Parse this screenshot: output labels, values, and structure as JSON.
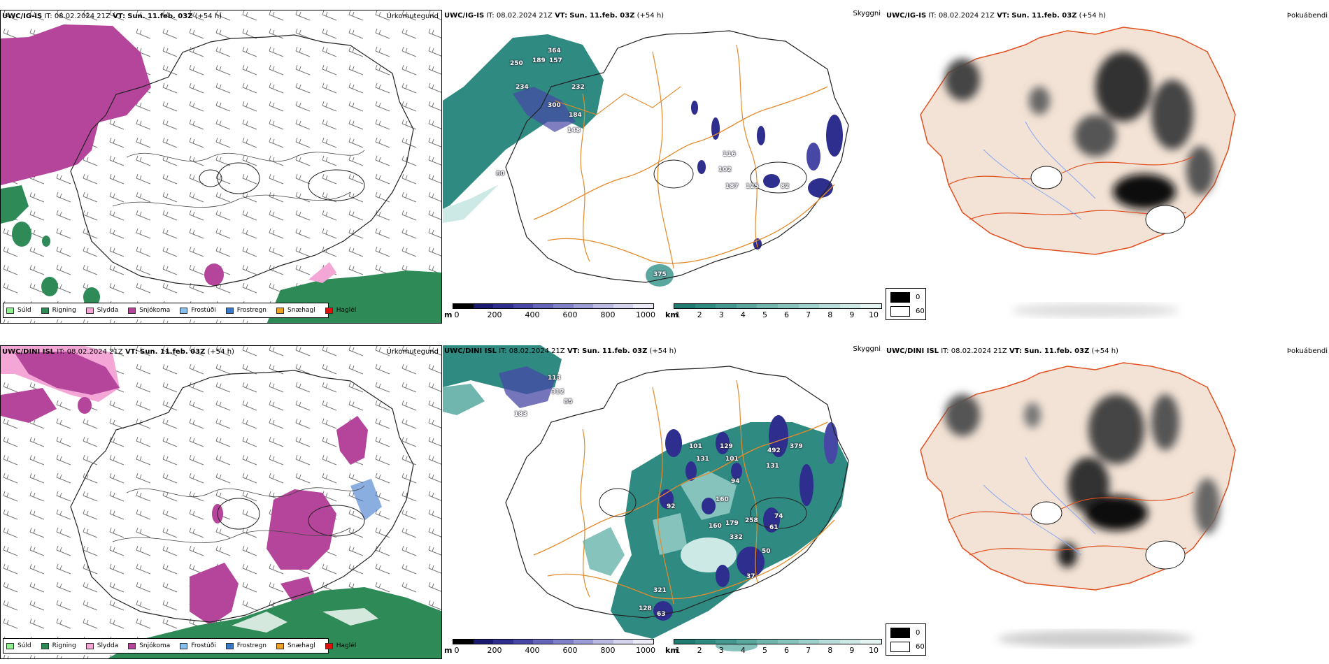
{
  "rows": [
    {
      "precip": {
        "model": "UWC/IG-IS",
        "it_label": "IT:",
        "it_value": "08.02.2024 21Z",
        "vt_label": "VT:",
        "vt_value": "Sun. 11.feb. 03Z",
        "lead": "(+54 h)",
        "field": "Úrkomutegund"
      },
      "vis": {
        "model": "UWC/IG-IS",
        "it_label": "IT:",
        "it_value": "08.02.2024 21Z",
        "vt_label": "VT:",
        "vt_value": "Sun. 11.feb. 03Z",
        "lead": "(+54 h)",
        "field": "Skyggni",
        "labels": [
          "364",
          "250",
          "189",
          "157",
          "232",
          "234",
          "300",
          "184",
          "148",
          "80",
          "116",
          "102",
          "125",
          "82",
          "187",
          "375"
        ]
      },
      "cloud": {
        "model": "UWC/IG-IS",
        "it_label": "IT:",
        "it_value": "08.02.2024 21Z",
        "vt_label": "VT:",
        "vt_value": "Sun. 11.feb. 03Z",
        "lead": "(+54 h)",
        "field": "Þokuábendi"
      }
    },
    {
      "precip": {
        "model": "UWC/DINI ISL",
        "it_label": "IT:",
        "it_value": "08.02.2024 21Z",
        "vt_label": "VT:",
        "vt_value": "Sun. 11.feb. 03Z",
        "lead": "(+54 h)",
        "field": "Úrkomutegund"
      },
      "vis": {
        "model": "UWC/DINI ISL",
        "it_label": "IT:",
        "it_value": "08.02.2024 21Z",
        "vt_label": "VT:",
        "vt_value": "Sun. 11.feb. 03Z",
        "lead": "(+54 h)",
        "field": "Skyggni",
        "labels": [
          "113",
          "312",
          "85",
          "183",
          "101",
          "131",
          "129",
          "101",
          "94",
          "379",
          "131",
          "492",
          "160",
          "92",
          "160",
          "179",
          "258",
          "332",
          "61",
          "74",
          "37",
          "50",
          "321",
          "128",
          "63"
        ]
      },
      "cloud": {
        "model": "UWC/DINI ISL",
        "it_label": "IT:",
        "it_value": "08.02.2024 21Z",
        "vt_label": "VT:",
        "vt_value": "Sun. 11.feb. 03Z",
        "lead": "(+54 h)",
        "field": "Þokuábendi"
      }
    }
  ],
  "precip_legend": [
    {
      "label": "Súld",
      "color": "#90ee90"
    },
    {
      "label": "Rigning",
      "color": "#2e8b57"
    },
    {
      "label": "Slydda",
      "color": "#f4a6d7"
    },
    {
      "label": "Snjókoma",
      "color": "#b5449b"
    },
    {
      "label": "Frostúði",
      "color": "#87bfee"
    },
    {
      "label": "Frostregn",
      "color": "#3a78c9"
    },
    {
      "label": "Snæhagl",
      "color": "#f0a020"
    },
    {
      "label": "Haglél",
      "color": "#e01010"
    }
  ],
  "height_scale": {
    "unit": "m",
    "ticks": [
      "0",
      "200",
      "400",
      "600",
      "800",
      "1000"
    ],
    "colors": [
      "#000000",
      "#1a1a70",
      "#2e2e8e",
      "#4747a6",
      "#6363b8",
      "#8080c8",
      "#9d9dd6",
      "#baba e4",
      "#d3d3ee",
      "#ebebf7"
    ]
  },
  "vis_scale": {
    "unit": "km",
    "ticks": [
      "1",
      "2",
      "3",
      "4",
      "5",
      "6",
      "7",
      "8",
      "9",
      "10"
    ],
    "colors": [
      "#1f7a72",
      "#2f8a82",
      "#449891",
      "#5aa7a0",
      "#70b5ae",
      "#87c3bd",
      "#9ed0cb",
      "#b5ddd9",
      "#cce9e6",
      "#e4f4f2"
    ]
  },
  "cloud_legend": [
    "0",
    "60"
  ]
}
